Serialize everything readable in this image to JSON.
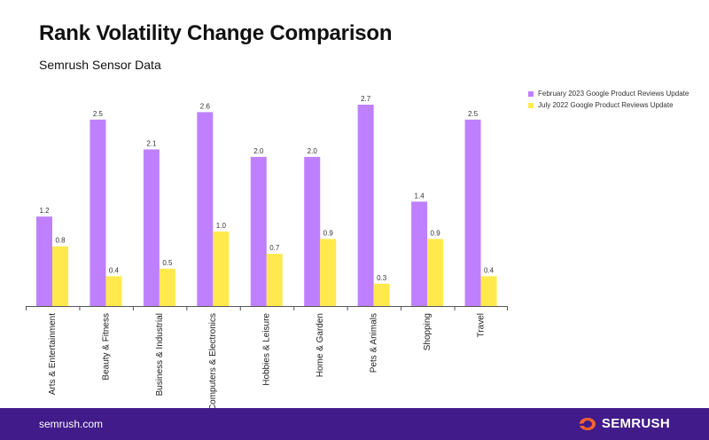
{
  "header": {
    "title": "Rank Volatility Change Comparison",
    "subtitle": "Semrush Sensor Data"
  },
  "footer": {
    "url": "semrush.com",
    "brand": "SEMRUSH"
  },
  "colors": {
    "feb2023": "#bf80ff",
    "jul2022": "#ffe94d",
    "footer_bg": "#411b8a",
    "brand_orange": "#ff642d"
  },
  "chart_data": {
    "type": "bar",
    "categories": [
      "Arts & Entertainment",
      "Beauty & Fitness",
      "Business & Industrial",
      "Computers & Electronics",
      "Hobbies & Leisure",
      "Home & Garden",
      "Pets & Animals",
      "Shopping",
      "Travel"
    ],
    "series": [
      {
        "name": "February 2023 Google Product Reviews Update",
        "values": [
          1.2,
          2.5,
          2.1,
          2.6,
          2.0,
          2.0,
          2.7,
          1.4,
          2.5
        ]
      },
      {
        "name": "July 2022 Google Product Reviews Update",
        "values": [
          0.8,
          0.4,
          0.5,
          1.0,
          0.7,
          0.9,
          0.3,
          0.9,
          0.4
        ]
      }
    ],
    "ylim": [
      0,
      2.7
    ],
    "legend": "top-right",
    "grid": false
  }
}
